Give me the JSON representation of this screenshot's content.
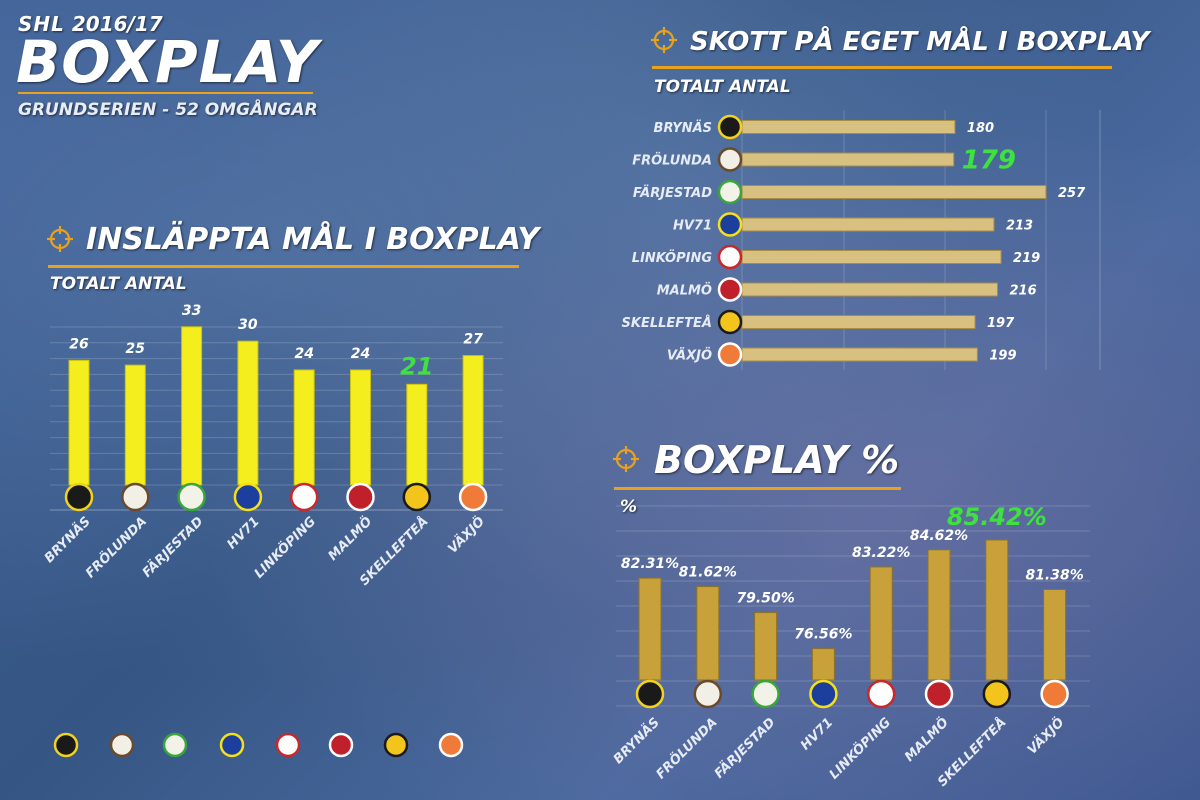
{
  "header": {
    "brand": "SHL",
    "season": "2016/17",
    "title": "BOXPLAY",
    "subtitle": "GRUNDSERIEN - 52 OMGÅNGAR"
  },
  "colors": {
    "accent": "#e8a21c",
    "yellow_bar": "#f4ee1e",
    "gold_bar": "#c9a13a",
    "highlight": "#3ee23e"
  },
  "teams": [
    "BRYNÄS",
    "FRÖLUNDA",
    "FÄRJESTAD",
    "HV71",
    "LINKÖPING",
    "MALMÖ",
    "SKELLEFTEÅ",
    "VÄXJÖ"
  ],
  "logo_icons": [
    "brynas-logo-icon",
    "frolunda-logo-icon",
    "farjestad-logo-icon",
    "hv71-logo-icon",
    "linkoping-logo-icon",
    "malmo-logo-icon",
    "skelleftea-logo-icon",
    "vaxjo-logo-icon"
  ],
  "sections": {
    "goals": {
      "title": "INSLÄPPTA MÅL I BOXPLAY",
      "subtitle": "TOTALT ANTAL"
    },
    "shots": {
      "title": "SKOTT PÅ EGET MÅL I BOXPLAY",
      "subtitle": "TOTALT ANTAL"
    },
    "pct": {
      "title": "BOXPLAY %",
      "subtitle": "%"
    }
  },
  "chart_data": [
    {
      "type": "bar",
      "title": "INSLÄPPTA MÅL I BOXPLAY",
      "subtitle": "TOTALT ANTAL",
      "categories": [
        "BRYNÄS",
        "FRÖLUNDA",
        "FÄRJESTAD",
        "HV71",
        "LINKÖPING",
        "MALMÖ",
        "SKELLEFTEÅ",
        "VÄXJÖ"
      ],
      "values": [
        26,
        25,
        33,
        30,
        24,
        24,
        21,
        27
      ],
      "labels": [
        "26",
        "25",
        "33",
        "30",
        "24",
        "24",
        "21",
        "27"
      ],
      "highlight_index": 6,
      "ylim": [
        0,
        34
      ]
    },
    {
      "type": "bar",
      "orientation": "horizontal",
      "title": "SKOTT PÅ EGET MÅL I BOXPLAY",
      "subtitle": "TOTALT ANTAL",
      "categories": [
        "BRYNÄS",
        "FRÖLUNDA",
        "FÄRJESTAD",
        "HV71",
        "LINKÖPING",
        "MALMÖ",
        "SKELLEFTEÅ",
        "VÄXJÖ"
      ],
      "values": [
        180,
        179,
        257,
        213,
        219,
        216,
        197,
        199
      ],
      "labels": [
        "180",
        "179",
        "257",
        "213",
        "219",
        "216",
        "197",
        "199"
      ],
      "highlight_index": 1,
      "xlim": [
        0,
        260
      ]
    },
    {
      "type": "bar",
      "title": "BOXPLAY %",
      "subtitle": "%",
      "categories": [
        "BRYNÄS",
        "FRÖLUNDA",
        "FÄRJESTAD",
        "HV71",
        "LINKÖPING",
        "MALMÖ",
        "SKELLEFTEÅ",
        "VÄXJÖ"
      ],
      "values": [
        82.31,
        81.62,
        79.5,
        76.56,
        83.22,
        84.62,
        85.42,
        81.38
      ],
      "labels": [
        "82.31%",
        "81.62%",
        "79.50%",
        "76.56%",
        "83.22%",
        "84.62%",
        "85.42%",
        "81.38%"
      ],
      "highlight_index": 6,
      "ylim": [
        74,
        86
      ]
    }
  ]
}
